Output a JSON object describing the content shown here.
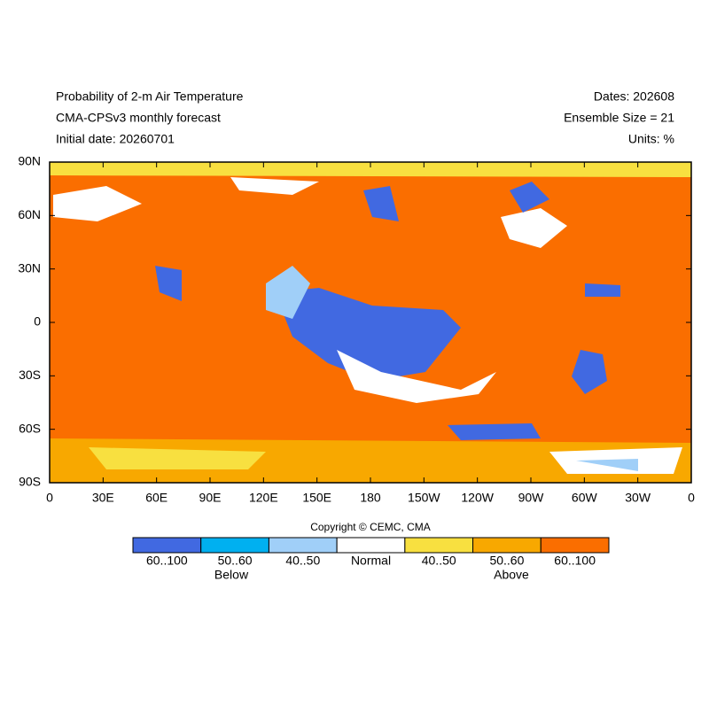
{
  "header": {
    "left": [
      "Probability of 2-m Air Temperature",
      "CMA-CPSv3 monthly forecast",
      "Initial date: 20260701"
    ],
    "right": [
      "Dates: 202608",
      "Ensemble Size = 21",
      "Units: %"
    ]
  },
  "map": {
    "lat_labels": [
      "90N",
      "60N",
      "30N",
      "0",
      "30S",
      "60S",
      "90S"
    ],
    "lon_labels": [
      "0",
      "30E",
      "60E",
      "90E",
      "120E",
      "150E",
      "180",
      "150W",
      "120W",
      "90W",
      "60W",
      "30W",
      "0"
    ]
  },
  "copyright": "Copyright © CEMC, CMA",
  "colorbar": {
    "labels": [
      "60..100",
      "50..60",
      "40..50",
      "Normal",
      "40..50",
      "50..60",
      "60..100"
    ],
    "colors": [
      "#4169e1",
      "#00b0f0",
      "#a0cff8",
      "#ffffff",
      "#f8e040",
      "#f8a800",
      "#fa6e00"
    ],
    "below": "Below",
    "above": "Above"
  }
}
